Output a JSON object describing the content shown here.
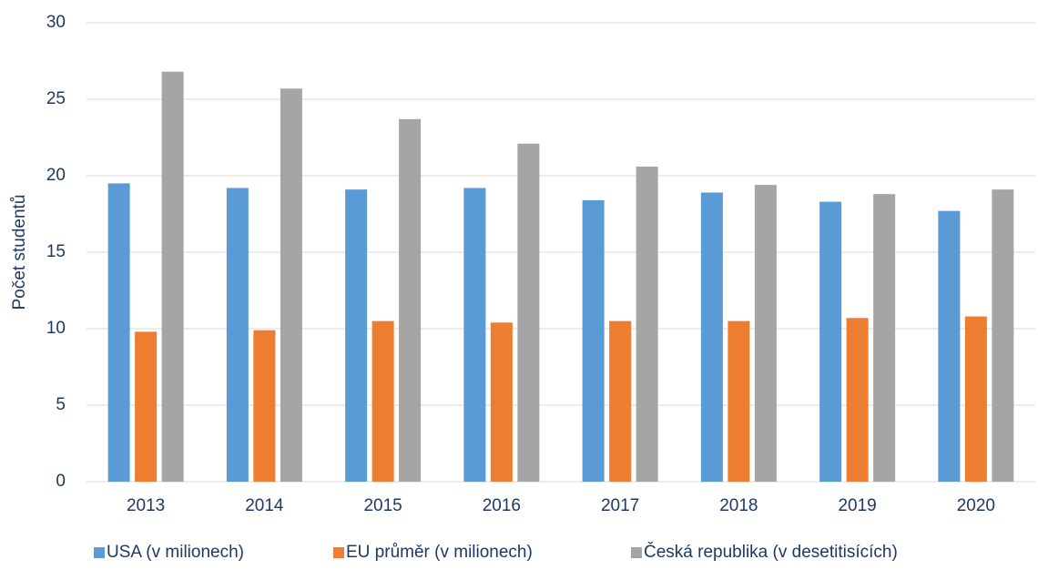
{
  "chart_data": {
    "type": "bar",
    "y_label": "Počet studentů",
    "categories": [
      "2013",
      "2014",
      "2015",
      "2016",
      "2017",
      "2018",
      "2019",
      "2020"
    ],
    "series": [
      {
        "name": "USA (v milionech)",
        "color": "#5b9bd5",
        "values": [
          19.5,
          19.2,
          19.1,
          19.2,
          18.4,
          18.9,
          18.3,
          17.7
        ]
      },
      {
        "name": "EU průměr (v milionech)",
        "color": "#ed7d31",
        "values": [
          9.8,
          9.9,
          10.5,
          10.4,
          10.5,
          10.5,
          10.7,
          10.8
        ]
      },
      {
        "name": "Česká republika (v desetitisících)",
        "color": "#a5a5a5",
        "values": [
          26.8,
          25.7,
          23.7,
          22.1,
          20.6,
          19.4,
          18.8,
          19.1
        ]
      }
    ],
    "ylim": [
      0,
      30
    ],
    "yticks": [
      0,
      5,
      10,
      15,
      20,
      25,
      30
    ],
    "grid": true,
    "legend": "bottom"
  }
}
